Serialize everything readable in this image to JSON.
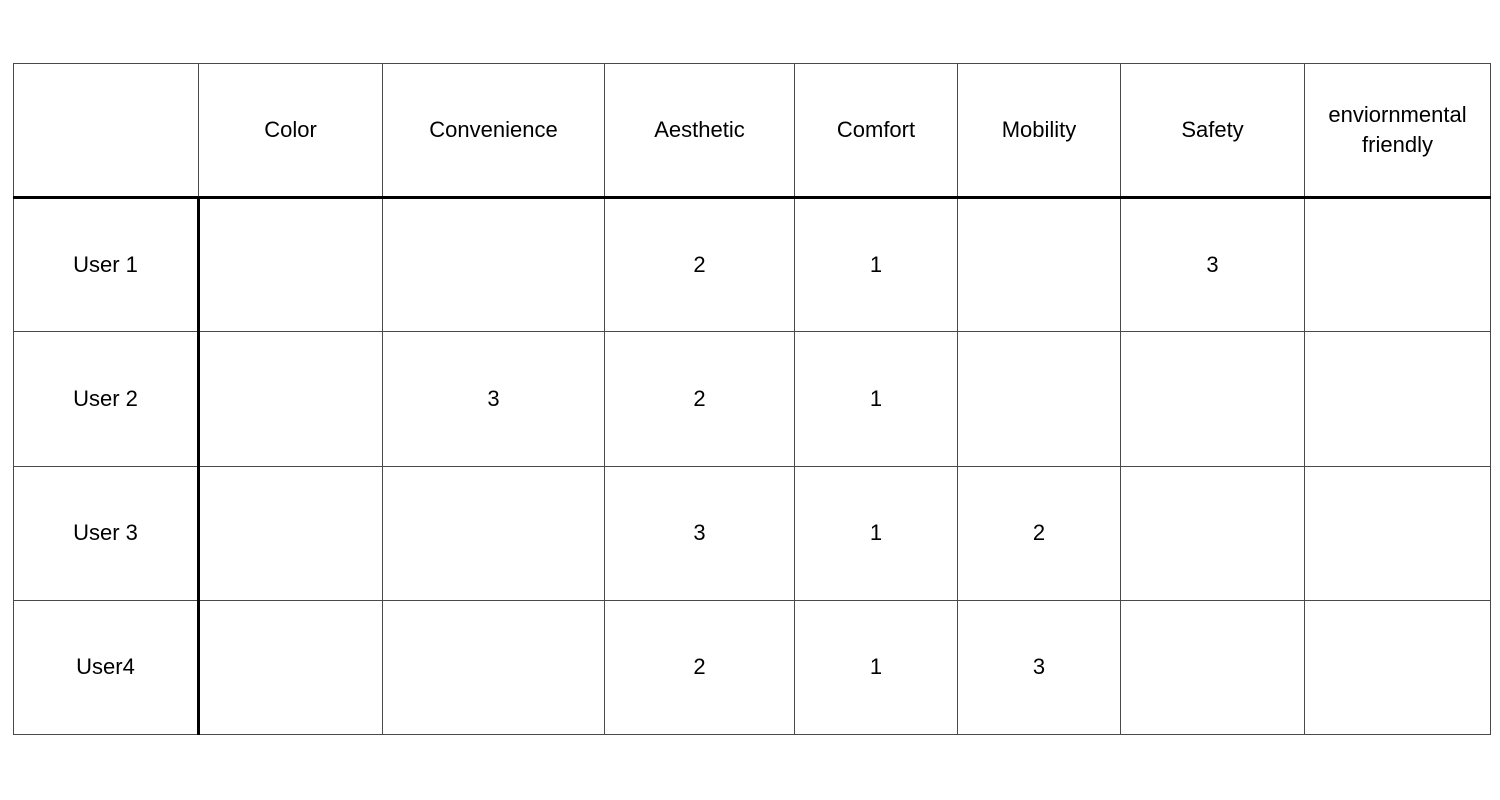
{
  "table": {
    "corner": "",
    "columns": [
      "Color",
      "Convenience",
      "Aesthetic",
      "Comfort",
      "Mobility",
      "Safety",
      "enviornmental\nfriendly"
    ],
    "rows": [
      {
        "label": "User 1",
        "cells": [
          "",
          "",
          "2",
          "1",
          "",
          "3",
          ""
        ]
      },
      {
        "label": "User 2",
        "cells": [
          "",
          "3",
          "2",
          "1",
          "",
          "",
          ""
        ]
      },
      {
        "label": "User 3",
        "cells": [
          "",
          "",
          "3",
          "1",
          "2",
          "",
          ""
        ]
      },
      {
        "label": "User4",
        "cells": [
          "",
          "",
          "2",
          "1",
          "3",
          "",
          ""
        ]
      }
    ]
  }
}
